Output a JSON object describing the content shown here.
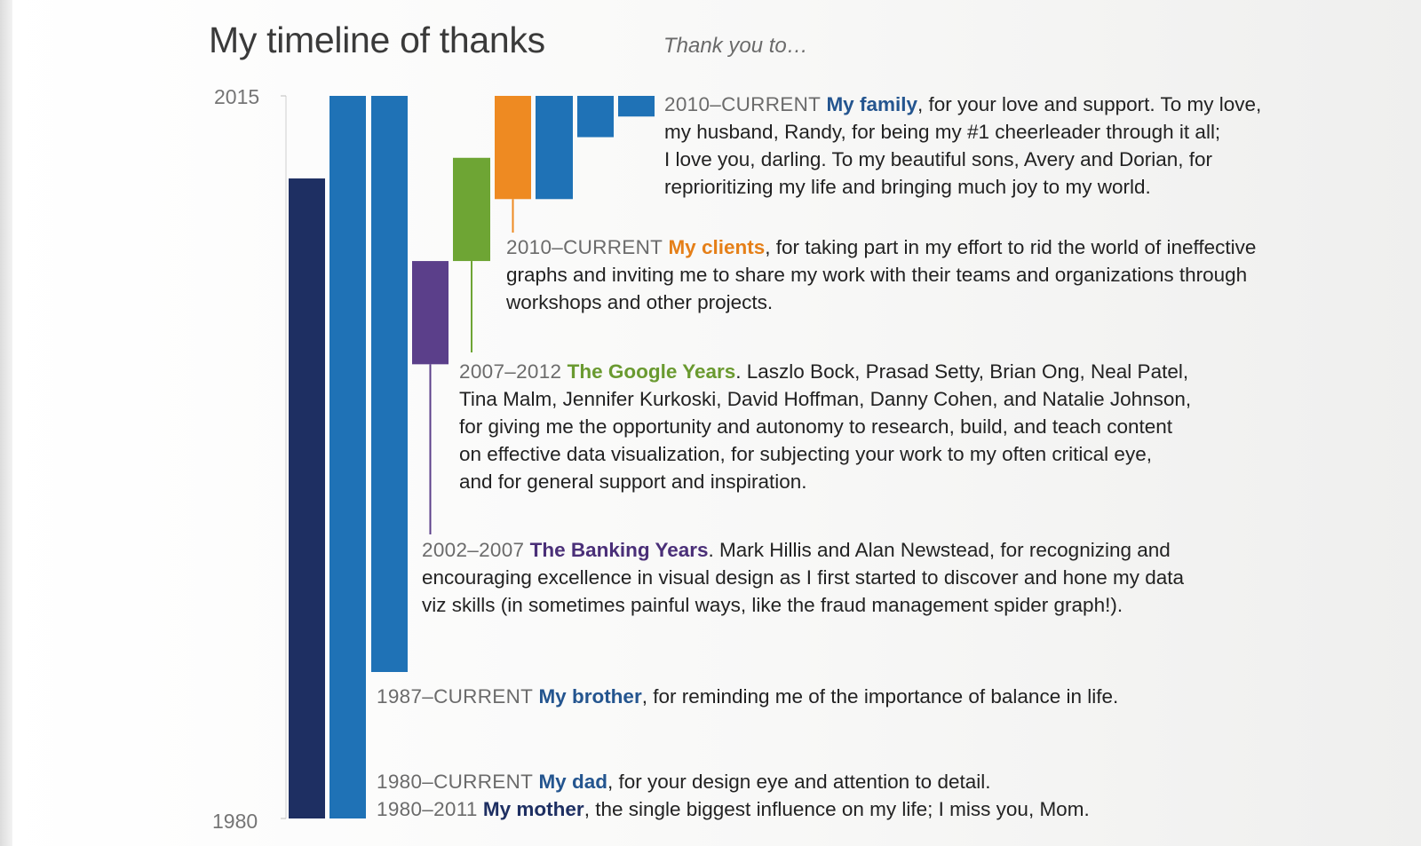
{
  "title": "My timeline of thanks",
  "subtitle": "Thank you to…",
  "colors": {
    "navy": "#1e2f62",
    "blue": "#1f72b6",
    "orange": "#ee8a22",
    "green": "#6ea534",
    "purple": "#5b3f8a"
  },
  "chart_data": {
    "type": "bar",
    "orientation": "floating vertical bars (time ranges)",
    "ylim": [
      1980,
      2015
    ],
    "tick_labels": [
      "2015",
      "1980"
    ],
    "series": [
      {
        "name": "My mother",
        "start": 1980,
        "end": 2011,
        "color": "#1e2f62"
      },
      {
        "name": "My dad",
        "start": 1980,
        "end": 2015,
        "color": "#1f72b6"
      },
      {
        "name": "My brother",
        "start": 1987,
        "end": 2015,
        "color": "#1f72b6"
      },
      {
        "name": "The Banking Years",
        "start": 2002,
        "end": 2007,
        "color": "#5b3f8a"
      },
      {
        "name": "The Google Years",
        "start": 2007,
        "end": 2012,
        "color": "#6ea534"
      },
      {
        "name": "My clients",
        "start": 2010,
        "end": 2015,
        "color": "#ee8a22"
      },
      {
        "name": "My family",
        "start": 2010,
        "end": 2015,
        "color": "#1f72b6"
      },
      {
        "name": "Avery",
        "start": 2013,
        "end": 2015,
        "color": "#1f72b6"
      },
      {
        "name": "Dorian",
        "start": 2014,
        "end": 2015,
        "color": "#1f72b6"
      }
    ]
  },
  "entries": {
    "family": {
      "period": "2010–CURRENT",
      "name": "My family",
      "lines": [
        ", for your love and support. To my love,",
        "my husband, Randy, for being my #1 cheerleader through it all;",
        "I love you, darling. To my beautiful sons, Avery and Dorian, for",
        "reprioritizing my life and bringing much joy to my world."
      ]
    },
    "clients": {
      "period": "2010–CURRENT",
      "name": "My clients",
      "lines": [
        ", for taking part in my effort to rid the world of ineffective",
        "graphs and inviting me to share my work with their teams and organizations through",
        "workshops and other projects."
      ]
    },
    "google": {
      "period": "2007–2012",
      "name": "The Google Years",
      "lines": [
        ". Laszlo Bock, Prasad Setty, Brian Ong, Neal Patel,",
        "Tina Malm, Jennifer Kurkoski, David Hoffman, Danny Cohen, and Natalie Johnson,",
        "for giving me the opportunity and autonomy to research, build, and teach content",
        "on effective data visualization, for subjecting your work to my often critical eye,",
        "and for general support and inspiration."
      ]
    },
    "banking": {
      "period": "2002–2007",
      "name": "The Banking Years",
      "lines": [
        ". Mark Hillis and Alan Newstead, for recognizing and",
        "encouraging excellence in visual design as I first started to discover and hone my data",
        "viz skills (in sometimes painful ways, like the fraud management spider graph!)."
      ]
    },
    "brother": {
      "period": "1987–CURRENT",
      "name": "My brother",
      "lines": [
        ", for reminding me of the importance of balance in life."
      ]
    },
    "dad": {
      "period": "1980–CURRENT",
      "name": "My dad",
      "lines": [
        ", for your design eye and attention to detail."
      ]
    },
    "mother": {
      "period": "1980–2011",
      "name": "My mother",
      "lines": [
        ", the single biggest influence on my life; I miss you, Mom."
      ]
    }
  }
}
